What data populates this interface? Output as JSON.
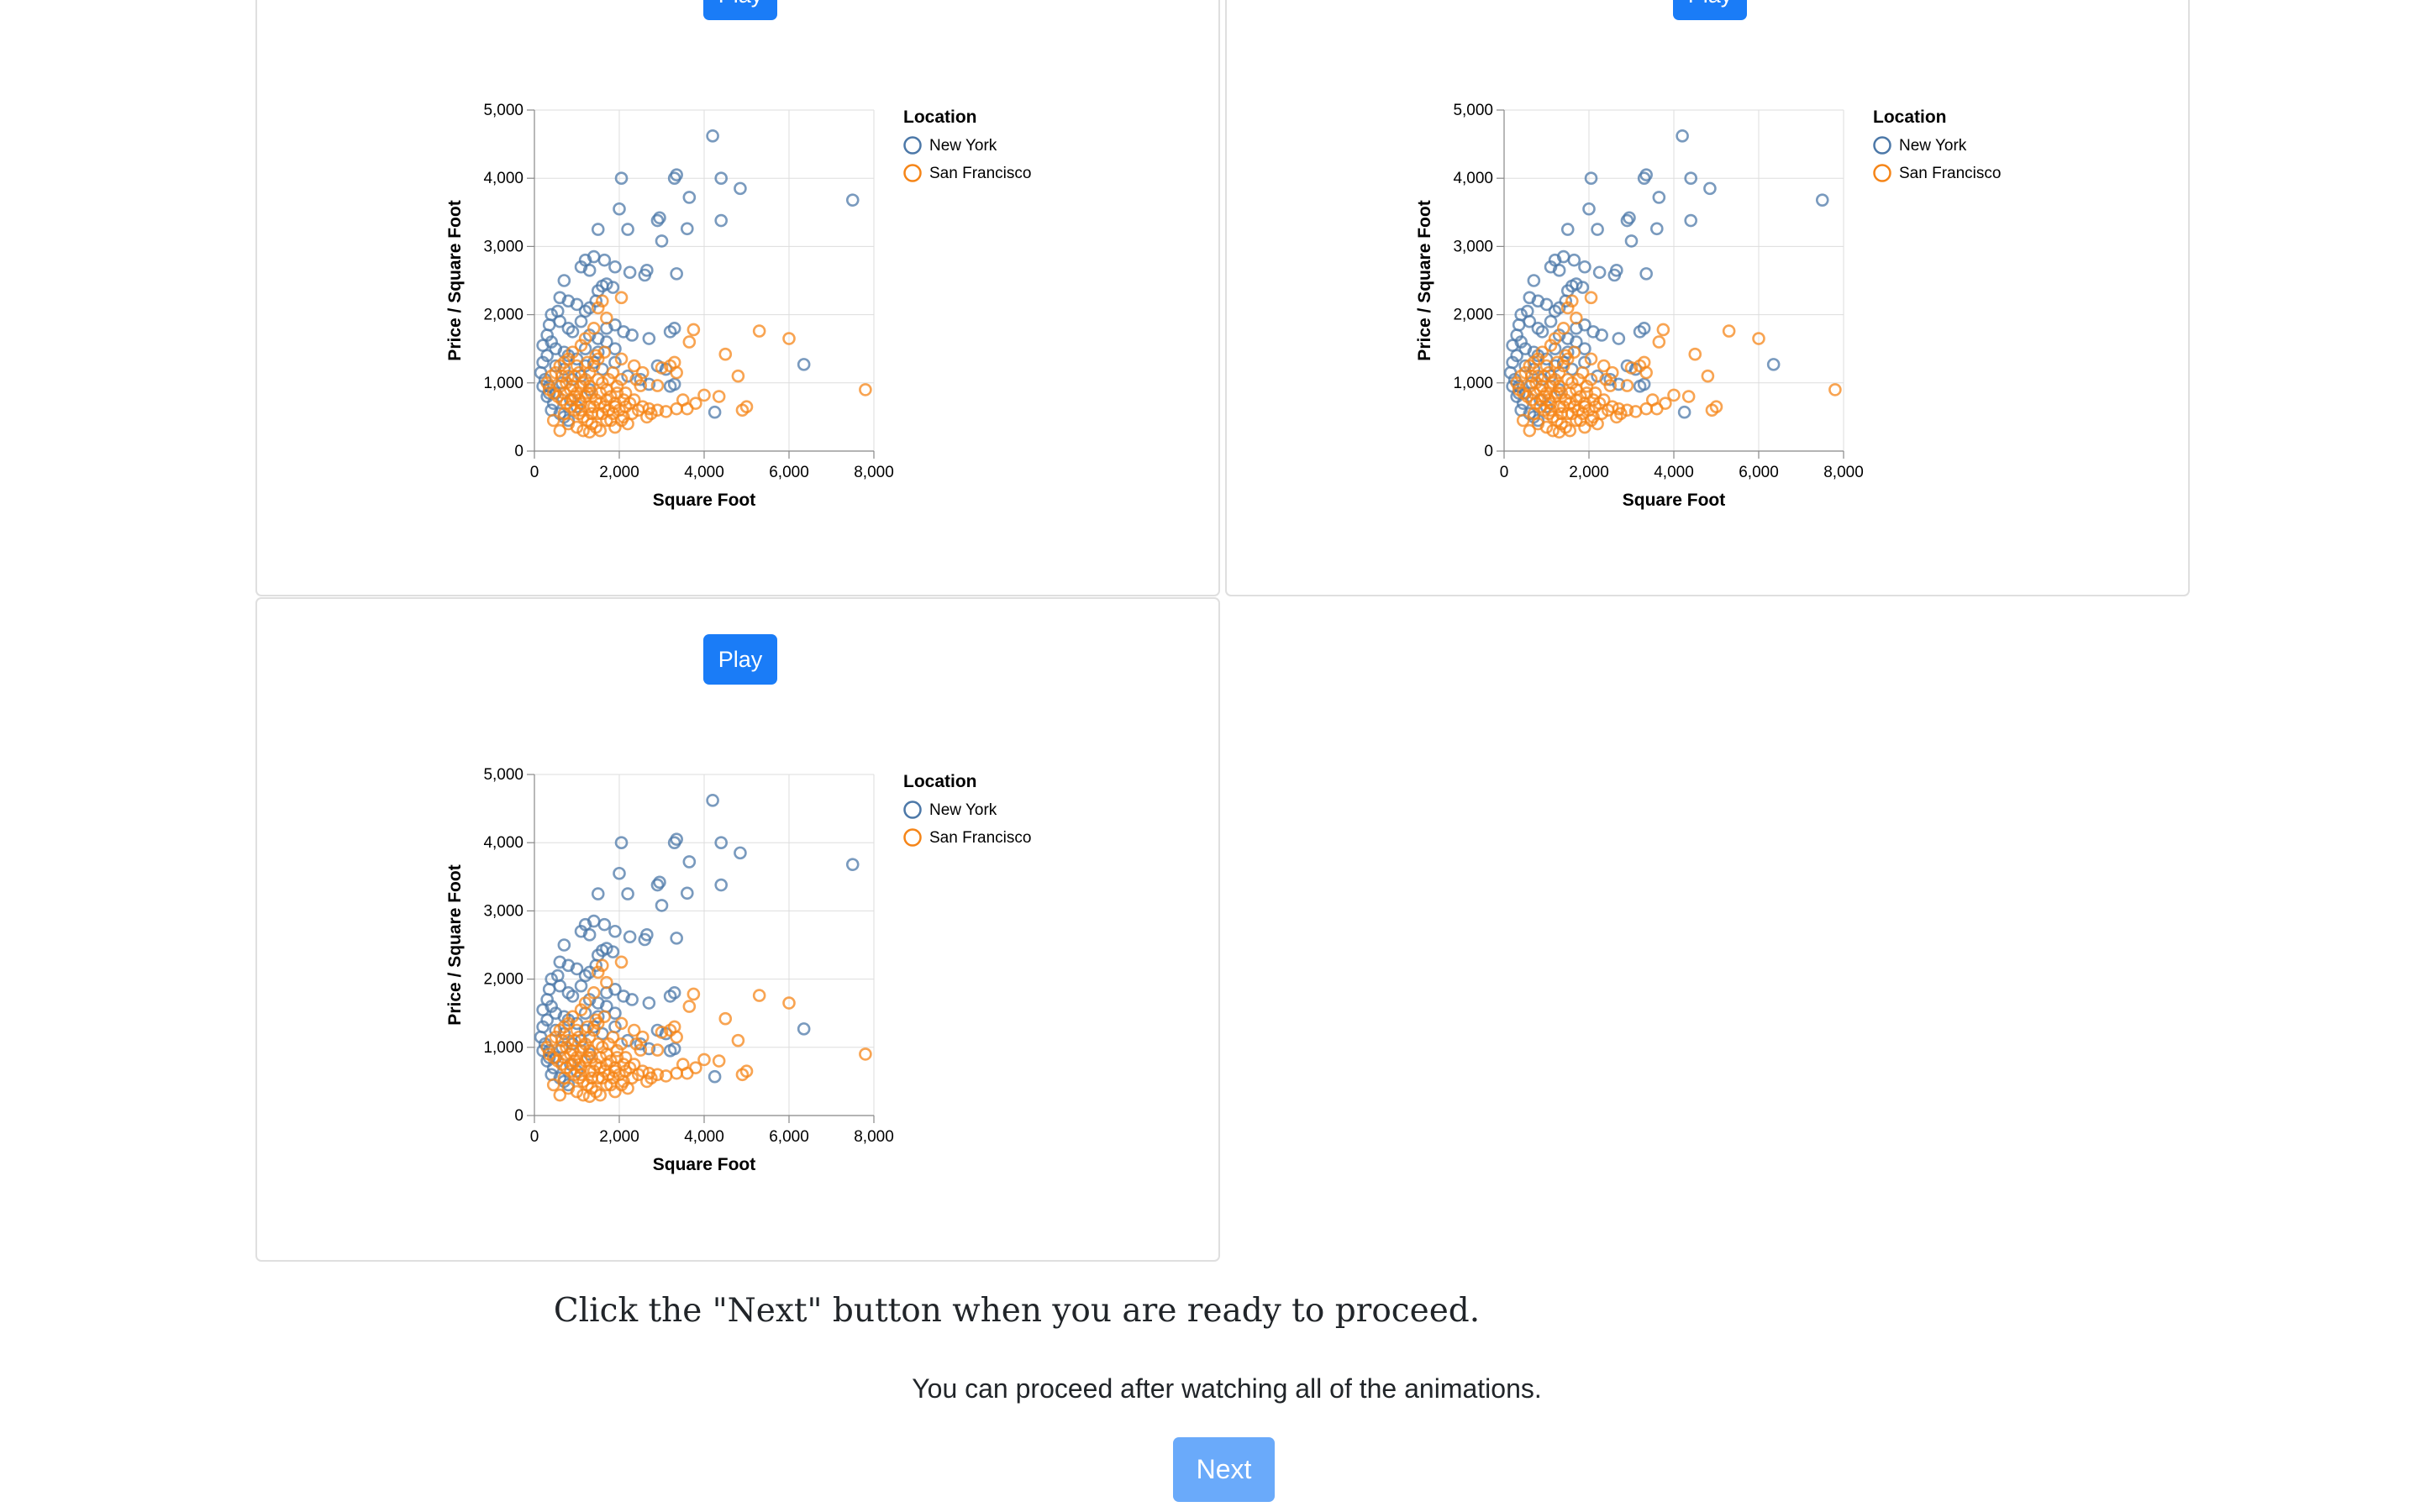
{
  "panels": [
    {
      "play_label": "Play"
    },
    {
      "play_label": "Play"
    },
    {
      "play_label": "Play"
    }
  ],
  "instruction": "Click the \"Next\" button when you are ready to proceed.",
  "subnote": "You can proceed after watching all of the animations.",
  "next_label": "Next",
  "colors": {
    "accent": "#1a7cf7",
    "accent_disabled": "#6aaafa",
    "new_york": "#4c78a8",
    "san_francisco": "#f58518"
  },
  "chart_data": {
    "type": "scatter",
    "xlabel": "Square Foot",
    "ylabel": "Price / Square Foot",
    "xlim": [
      0,
      8000
    ],
    "ylim": [
      0,
      5000
    ],
    "xticks": [
      0,
      2000,
      4000,
      6000,
      8000
    ],
    "yticks": [
      0,
      1000,
      2000,
      3000,
      4000,
      5000
    ],
    "xtick_labels": [
      "0",
      "2,000",
      "4,000",
      "6,000",
      "8,000"
    ],
    "ytick_labels": [
      "0",
      "1,000",
      "2,000",
      "3,000",
      "4,000",
      "5,000"
    ],
    "grid": true,
    "legend": {
      "title": "Location",
      "placement": "right"
    },
    "series": [
      {
        "name": "New York",
        "color": "#4c78a8",
        "points": [
          [
            4200,
            4620
          ],
          [
            7500,
            3680
          ],
          [
            6350,
            1270
          ],
          [
            4250,
            570
          ],
          [
            3200,
            950
          ],
          [
            4850,
            3850
          ],
          [
            4400,
            4000
          ],
          [
            3350,
            4050
          ],
          [
            3300,
            4000
          ],
          [
            3650,
            3720
          ],
          [
            4400,
            3380
          ],
          [
            2050,
            4000
          ],
          [
            3600,
            3260
          ],
          [
            2900,
            3380
          ],
          [
            2950,
            3420
          ],
          [
            3000,
            3080
          ],
          [
            1500,
            3250
          ],
          [
            2200,
            3250
          ],
          [
            2000,
            3550
          ],
          [
            1900,
            2700
          ],
          [
            1650,
            2800
          ],
          [
            1400,
            2850
          ],
          [
            1200,
            2800
          ],
          [
            1100,
            2700
          ],
          [
            1300,
            2650
          ],
          [
            3350,
            2600
          ],
          [
            2650,
            2650
          ],
          [
            2600,
            2580
          ],
          [
            2250,
            2620
          ],
          [
            1700,
            2450
          ],
          [
            1600,
            2420
          ],
          [
            1850,
            2400
          ],
          [
            1500,
            2350
          ],
          [
            1450,
            2200
          ],
          [
            1300,
            2100
          ],
          [
            1200,
            2050
          ],
          [
            1000,
            2150
          ],
          [
            800,
            2200
          ],
          [
            700,
            2500
          ],
          [
            600,
            2250
          ],
          [
            550,
            2050
          ],
          [
            400,
            2000
          ],
          [
            350,
            1850
          ],
          [
            300,
            1700
          ],
          [
            200,
            1550
          ],
          [
            400,
            1600
          ],
          [
            600,
            1900
          ],
          [
            800,
            1800
          ],
          [
            900,
            1750
          ],
          [
            1100,
            1900
          ],
          [
            1300,
            1700
          ],
          [
            1500,
            1650
          ],
          [
            1700,
            1800
          ],
          [
            1900,
            1850
          ],
          [
            2100,
            1750
          ],
          [
            2300,
            1700
          ],
          [
            3300,
            1800
          ],
          [
            3200,
            1750
          ],
          [
            2700,
            1650
          ],
          [
            1700,
            1600
          ],
          [
            1900,
            1500
          ],
          [
            1500,
            1450
          ],
          [
            1200,
            1500
          ],
          [
            1000,
            1350
          ],
          [
            800,
            1400
          ],
          [
            700,
            1450
          ],
          [
            500,
            1500
          ],
          [
            300,
            1400
          ],
          [
            200,
            1300
          ],
          [
            150,
            1150
          ],
          [
            250,
            1050
          ],
          [
            200,
            950
          ],
          [
            350,
            850
          ],
          [
            300,
            800
          ],
          [
            450,
            700
          ],
          [
            400,
            600
          ],
          [
            600,
            550
          ],
          [
            700,
            500
          ],
          [
            800,
            450
          ],
          [
            1000,
            650
          ],
          [
            1300,
            900
          ],
          [
            1600,
            1200
          ],
          [
            1900,
            1300
          ],
          [
            2200,
            1100
          ],
          [
            2500,
            1050
          ],
          [
            2700,
            980
          ],
          [
            1100,
            1100
          ],
          [
            900,
            1050
          ],
          [
            700,
            1200
          ],
          [
            500,
            1250
          ],
          [
            1200,
            1250
          ],
          [
            1400,
            1300
          ],
          [
            3100,
            1200
          ],
          [
            3300,
            980
          ],
          [
            2900,
            1250
          ],
          [
            350,
            950
          ],
          [
            650,
            1000
          ],
          [
            500,
            850
          ],
          [
            850,
            750
          ]
        ]
      },
      {
        "name": "San Francisco",
        "color": "#f58518",
        "points": [
          [
            7800,
            900
          ],
          [
            6000,
            1650
          ],
          [
            5300,
            1760
          ],
          [
            4500,
            1420
          ],
          [
            4800,
            1100
          ],
          [
            4350,
            800
          ],
          [
            4000,
            820
          ],
          [
            3800,
            700
          ],
          [
            3600,
            620
          ],
          [
            3750,
            1780
          ],
          [
            3650,
            1600
          ],
          [
            3200,
            1250
          ],
          [
            3000,
            1220
          ],
          [
            2900,
            960
          ],
          [
            2500,
            960
          ],
          [
            2050,
            2250
          ],
          [
            1600,
            2200
          ],
          [
            1500,
            2100
          ],
          [
            3300,
            1300
          ],
          [
            3350,
            1150
          ],
          [
            2700,
            620
          ],
          [
            2900,
            600
          ],
          [
            3100,
            580
          ],
          [
            3350,
            620
          ],
          [
            3500,
            750
          ],
          [
            5000,
            650
          ],
          [
            4900,
            600
          ],
          [
            2050,
            1350
          ],
          [
            2350,
            1250
          ],
          [
            2550,
            1150
          ],
          [
            2400,
            1050
          ],
          [
            1700,
            1950
          ],
          [
            1400,
            1800
          ],
          [
            1200,
            1650
          ],
          [
            1100,
            1550
          ],
          [
            900,
            1450
          ],
          [
            800,
            1350
          ],
          [
            700,
            1300
          ],
          [
            600,
            1250
          ],
          [
            500,
            1150
          ],
          [
            400,
            1100
          ],
          [
            300,
            1000
          ],
          [
            350,
            900
          ],
          [
            450,
            850
          ],
          [
            550,
            800
          ],
          [
            650,
            750
          ],
          [
            750,
            700
          ],
          [
            850,
            650
          ],
          [
            950,
            600
          ],
          [
            1050,
            550
          ],
          [
            1150,
            500
          ],
          [
            1250,
            450
          ],
          [
            1350,
            400
          ],
          [
            1450,
            350
          ],
          [
            1550,
            300
          ],
          [
            1300,
            280
          ],
          [
            1000,
            350
          ],
          [
            800,
            400
          ],
          [
            600,
            300
          ],
          [
            450,
            450
          ],
          [
            700,
            550
          ],
          [
            900,
            750
          ],
          [
            1000,
            850
          ],
          [
            1100,
            950
          ],
          [
            1200,
            1050
          ],
          [
            1300,
            1150
          ],
          [
            1400,
            1250
          ],
          [
            1500,
            1350
          ],
          [
            1600,
            1000
          ],
          [
            1700,
            900
          ],
          [
            1800,
            800
          ],
          [
            1900,
            700
          ],
          [
            2000,
            600
          ],
          [
            2100,
            500
          ],
          [
            2200,
            400
          ],
          [
            1900,
            350
          ],
          [
            1700,
            450
          ],
          [
            1500,
            550
          ],
          [
            1300,
            650
          ],
          [
            1100,
            700
          ],
          [
            950,
            800
          ],
          [
            850,
            900
          ],
          [
            750,
            1000
          ],
          [
            650,
            1100
          ],
          [
            1250,
            850
          ],
          [
            1450,
            750
          ],
          [
            1650,
            650
          ],
          [
            1850,
            550
          ],
          [
            2050,
            450
          ],
          [
            2250,
            700
          ],
          [
            2450,
            600
          ],
          [
            2650,
            500
          ],
          [
            1150,
            300
          ],
          [
            1350,
            550
          ],
          [
            1550,
            850
          ],
          [
            1750,
            1050
          ],
          [
            1950,
            950
          ],
          [
            2150,
            850
          ],
          [
            2350,
            750
          ],
          [
            2550,
            650
          ],
          [
            2750,
            550
          ],
          [
            1050,
            1150
          ],
          [
            1250,
            1300
          ],
          [
            1450,
            1400
          ],
          [
            1650,
            1450
          ],
          [
            1850,
            1150
          ],
          [
            2050,
            1050
          ],
          [
            900,
            950
          ],
          [
            1100,
            600
          ],
          [
            1300,
            950
          ],
          [
            1500,
            1050
          ],
          [
            1700,
            750
          ],
          [
            1900,
            650
          ],
          [
            2100,
            750
          ],
          [
            2300,
            550
          ],
          [
            1000,
            1250
          ],
          [
            800,
            1100
          ],
          [
            600,
            950
          ],
          [
            1200,
            800
          ],
          [
            1400,
            650
          ],
          [
            1600,
            550
          ],
          [
            1800,
            450
          ],
          [
            700,
            850
          ],
          [
            1050,
            750
          ],
          [
            1350,
            850
          ],
          [
            1550,
            700
          ],
          [
            1750,
            600
          ],
          [
            1950,
            850
          ],
          [
            2150,
            650
          ],
          [
            1150,
            1000
          ],
          [
            950,
            1100
          ]
        ]
      }
    ]
  }
}
